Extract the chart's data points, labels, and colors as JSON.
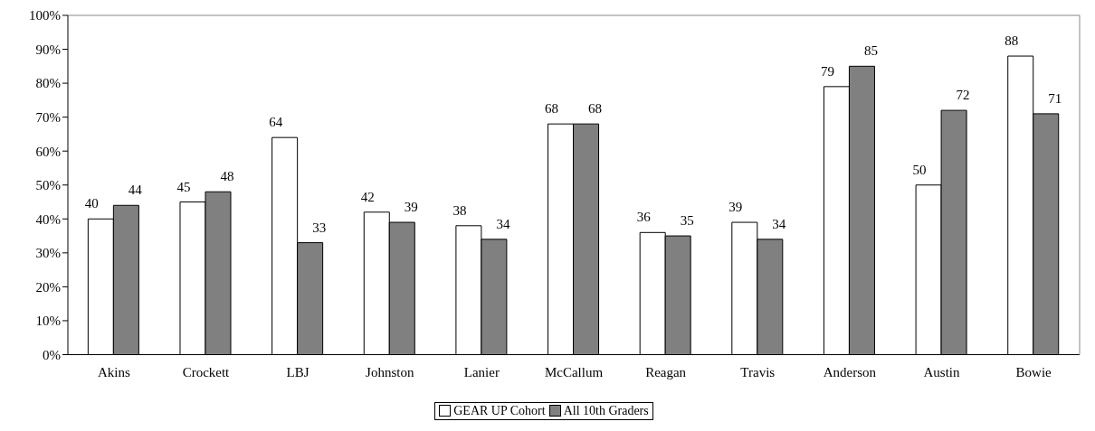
{
  "chart_data": {
    "type": "bar",
    "categories": [
      "Akins",
      "Crockett",
      "LBJ",
      "Johnston",
      "Lanier",
      "McCallum",
      "Reagan",
      "Travis",
      "Anderson",
      "Austin",
      "Bowie"
    ],
    "series": [
      {
        "name": "GEAR UP Cohort",
        "color": "#ffffff",
        "values": [
          40,
          45,
          64,
          42,
          38,
          68,
          36,
          39,
          79,
          50,
          88
        ]
      },
      {
        "name": "All 10th Graders",
        "color": "#808080",
        "values": [
          44,
          48,
          33,
          39,
          34,
          68,
          35,
          34,
          85,
          72,
          71
        ]
      }
    ],
    "ylim": [
      0,
      100
    ],
    "yticks": [
      {
        "value": 0,
        "label": "0%"
      },
      {
        "value": 10,
        "label": "10%"
      },
      {
        "value": 20,
        "label": "20%"
      },
      {
        "value": 30,
        "label": "30%"
      },
      {
        "value": 40,
        "label": "40%"
      },
      {
        "value": 50,
        "label": "50%"
      },
      {
        "value": 60,
        "label": "60%"
      },
      {
        "value": 70,
        "label": "70%"
      },
      {
        "value": 80,
        "label": "80%"
      },
      {
        "value": 90,
        "label": "90%"
      },
      {
        "value": 100,
        "label": "100%"
      }
    ],
    "grid": false,
    "legend": "bottom",
    "data_labels": true
  }
}
